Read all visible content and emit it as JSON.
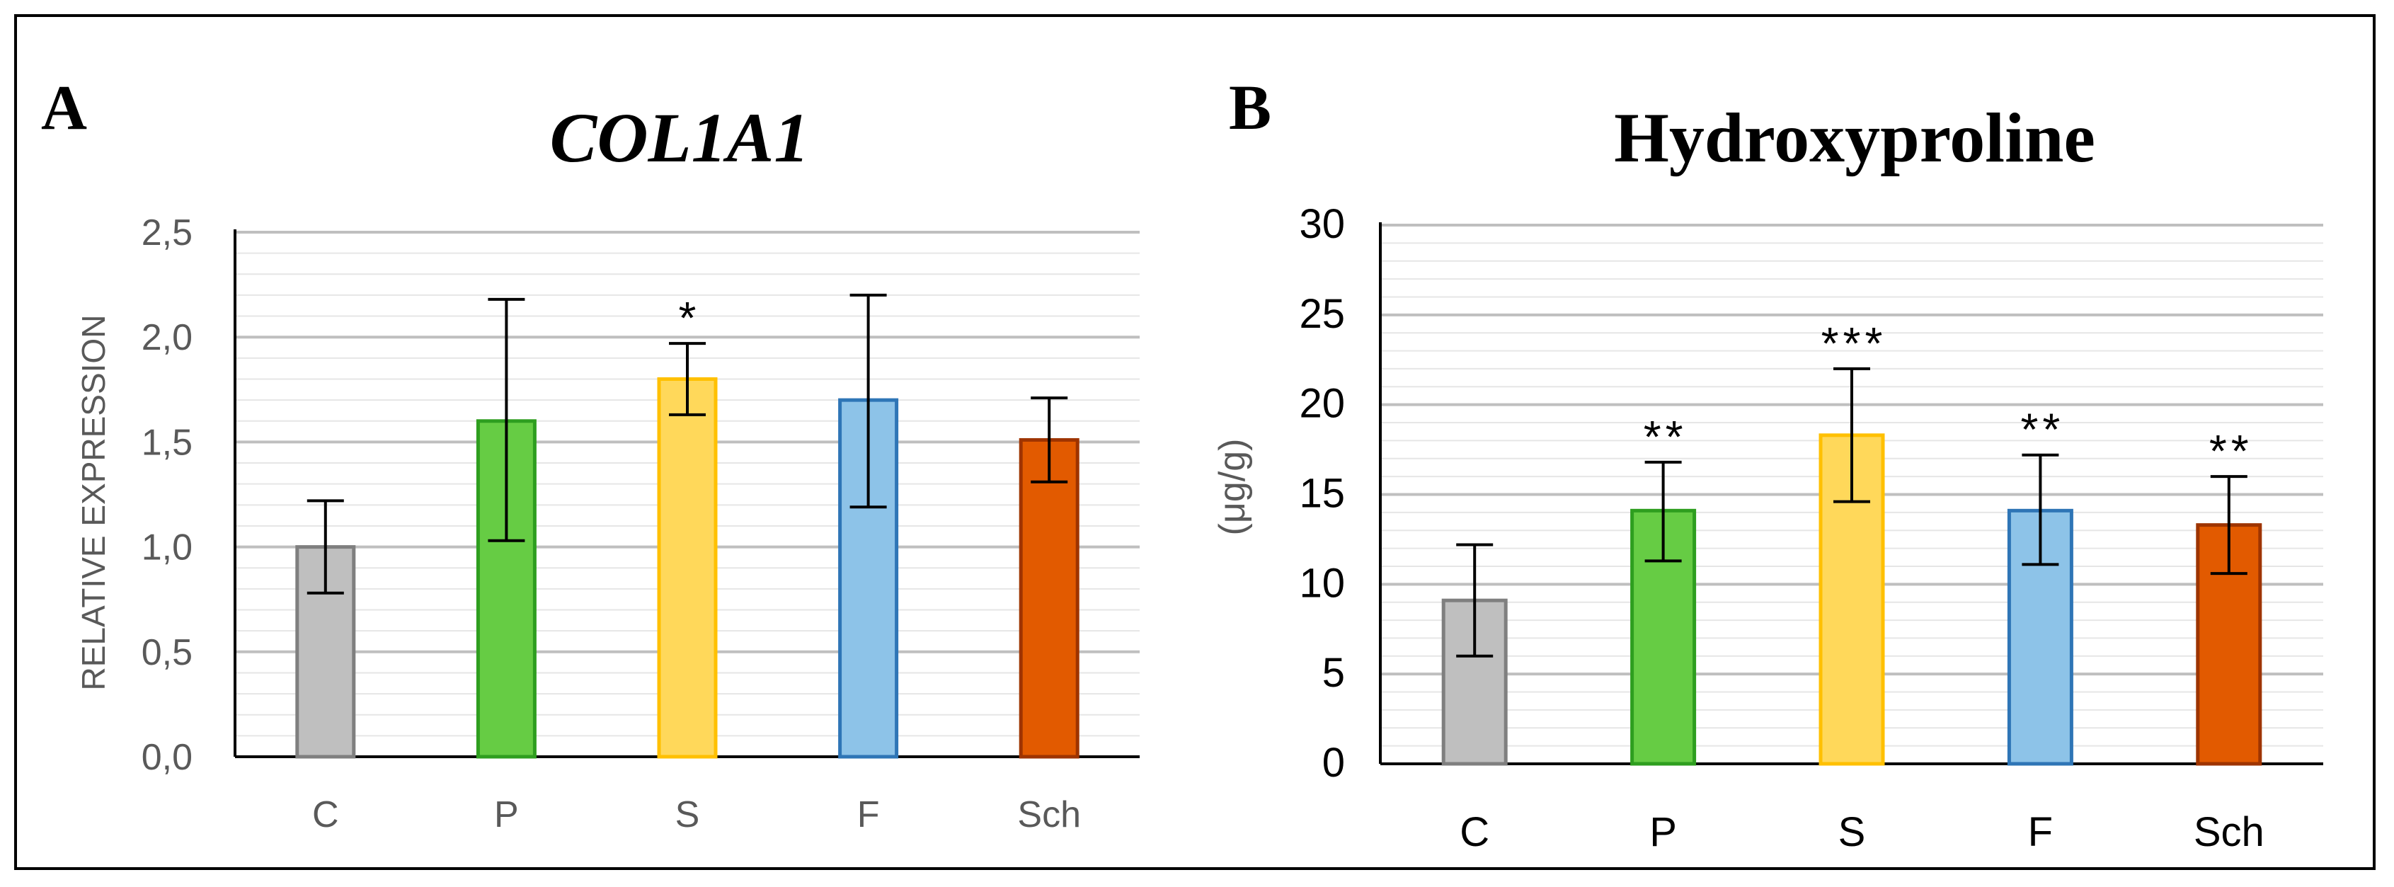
{
  "chart_data": [
    {
      "panel": "A",
      "type": "bar",
      "title": "COL1A1",
      "xlabel": "",
      "ylabel": "RELATIVE EXPRESSION",
      "ylim": [
        0,
        2.5
      ],
      "yticks": [
        "0,0",
        "0,5",
        "1,0",
        "1,5",
        "2,0",
        "2,5"
      ],
      "ytick_values": [
        0,
        0.5,
        1.0,
        1.5,
        2.0,
        2.5
      ],
      "minor_step": 0.1,
      "categories": [
        "C",
        "P",
        "S",
        "F",
        "Sch"
      ],
      "values": [
        1.0,
        1.6,
        1.8,
        1.7,
        1.51
      ],
      "error_low": [
        0.78,
        1.03,
        1.63,
        1.19,
        1.31
      ],
      "error_high": [
        1.22,
        2.18,
        1.97,
        2.2,
        1.71
      ],
      "significance": [
        "",
        "",
        "*",
        "",
        ""
      ],
      "grid": true,
      "legend": "none",
      "fill_colors": [
        "#BFBFBF",
        "#66CC44",
        "#FFD85A",
        "#8DC3E8",
        "#E25A00"
      ],
      "edge_colors": [
        "#7F7F7F",
        "#2E9E1F",
        "#FFC000",
        "#2E75B6",
        "#9E3400"
      ]
    },
    {
      "panel": "B",
      "type": "bar",
      "title": "Hydroxyproline",
      "xlabel": "",
      "ylabel": "(μg/g)",
      "ylim": [
        0,
        30
      ],
      "yticks": [
        "0",
        "5",
        "10",
        "15",
        "20",
        "25",
        "30"
      ],
      "ytick_values": [
        0,
        5,
        10,
        15,
        20,
        25,
        30
      ],
      "minor_step": 1,
      "categories": [
        "C",
        "P",
        "S",
        "F",
        "Sch"
      ],
      "values": [
        9.1,
        14.1,
        18.3,
        14.1,
        13.3
      ],
      "error_low": [
        6.0,
        11.3,
        14.6,
        11.1,
        10.6
      ],
      "error_high": [
        12.2,
        16.8,
        22.0,
        17.2,
        16.0
      ],
      "significance": [
        "",
        "**",
        "***",
        "**",
        "**"
      ],
      "grid": true,
      "legend": "none",
      "fill_colors": [
        "#BFBFBF",
        "#66CC44",
        "#FFD85A",
        "#8DC3E8",
        "#E25A00"
      ],
      "edge_colors": [
        "#7F7F7F",
        "#2E9E1F",
        "#FFC000",
        "#2E75B6",
        "#9E3400"
      ]
    }
  ]
}
